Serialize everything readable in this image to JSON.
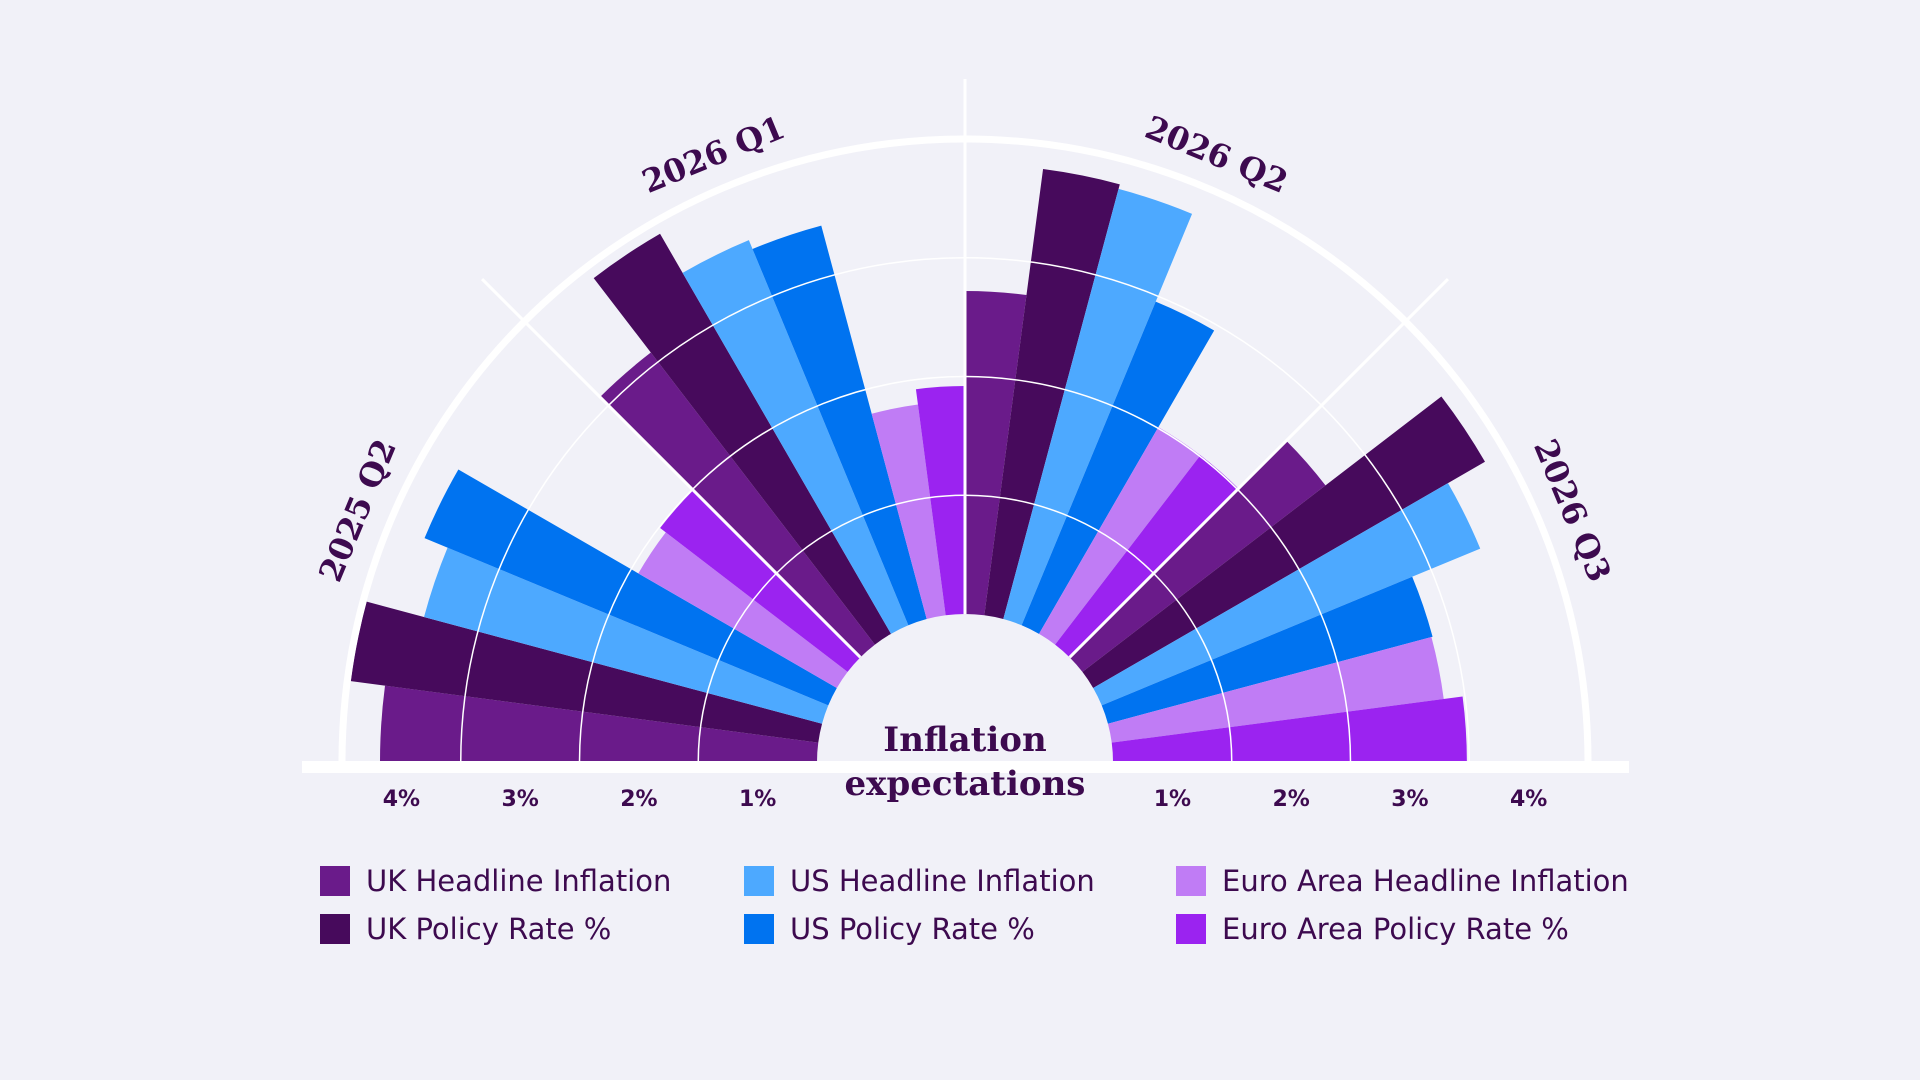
{
  "chart_data": {
    "type": "radial-bar",
    "title": "Inflation expectations",
    "categories": [
      "2025 Q2",
      "2026 Q1",
      "2026 Q2",
      "2026 Q3"
    ],
    "series": [
      {
        "name": "UK Headline Inflation",
        "color": "#6a1b8a",
        "values": [
          3.68,
          3.1,
          2.72,
          2.58
        ]
      },
      {
        "name": "UK Policy Rate %",
        "color": "#470a5c",
        "values": [
          3.97,
          3.89,
          3.79,
          3.81
        ]
      },
      {
        "name": "US Headline Inflation",
        "color": "#4da9ff",
        "values": [
          3.47,
          3.51,
          3.75,
          3.45
        ]
      },
      {
        "name": "US Policy Rate %",
        "color": "#0073f0",
        "values": [
          3.68,
          3.43,
          2.95,
          2.83
        ]
      },
      {
        "name": "Euro Area Headline Inflation",
        "color": "#c07cf5",
        "values": [
          1.93,
          1.79,
          2.01,
          2.82
        ]
      },
      {
        "name": "Euro Area Policy Rate %",
        "color": "#9b23f0",
        "values": [
          1.99,
          1.92,
          2.01,
          2.98
        ]
      }
    ],
    "ylim": [
      0,
      4
    ],
    "yticks": [
      {
        "value": 1,
        "label": "1%"
      },
      {
        "value": 2,
        "label": "2%"
      },
      {
        "value": 3,
        "label": "3%"
      },
      {
        "value": 4,
        "label": "4%"
      }
    ],
    "grid": true
  }
}
